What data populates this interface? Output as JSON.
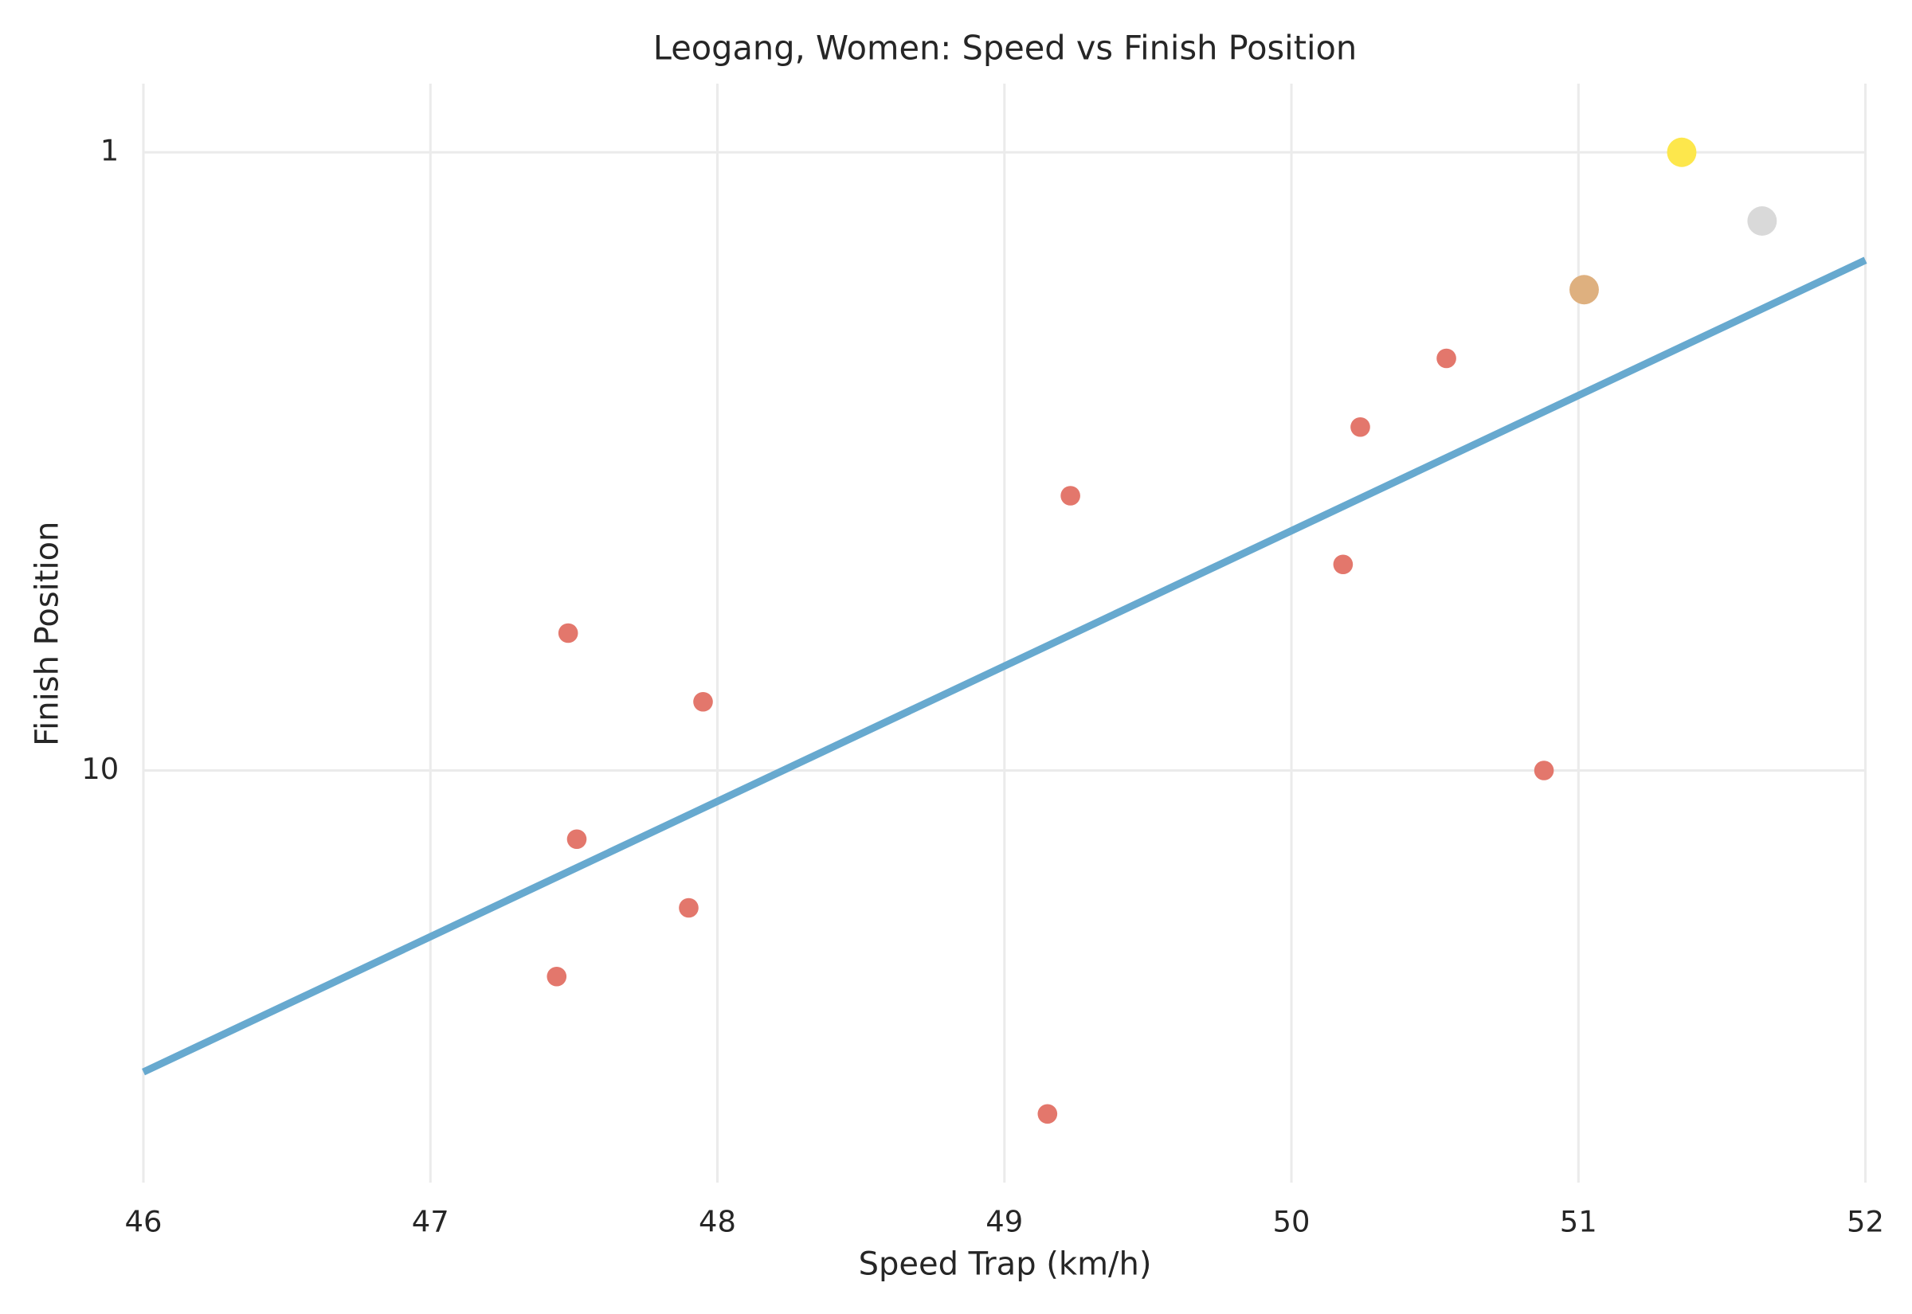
{
  "chart_data": {
    "type": "scatter",
    "title": "Leogang, Women: Speed vs Finish Position",
    "x_label": "Speed Trap (km/h)",
    "y_label": "Finish Position",
    "x": [
      51.36,
      51.64,
      51.02,
      50.54,
      50.24,
      49.23,
      50.18,
      47.48,
      47.95,
      50.88,
      47.51,
      47.9,
      47.44,
      49.15
    ],
    "values": [
      1,
      2,
      3,
      4,
      5,
      6,
      7,
      8,
      9,
      10,
      11,
      12,
      13,
      15
    ],
    "color": "#e3776c",
    "colors": [
      "#fde74c",
      "#d9d9d9",
      "#deb07f",
      "#e3776c",
      "#e3776c",
      "#e3776c",
      "#e3776c",
      "#e3776c",
      "#e3776c",
      "#e3776c",
      "#e3776c",
      "#e3776c",
      "#e3776c",
      "#e3776c"
    ],
    "trend_line": {
      "x": [
        46,
        52
      ],
      "values": [
        14.39,
        2.57
      ],
      "color": "#67a9cf"
    },
    "xlim": [
      46,
      52
    ],
    "xticks": [
      46,
      47,
      48,
      49,
      50,
      51,
      52
    ],
    "ylim": [
      16,
      0
    ],
    "yticks": [
      1,
      10
    ],
    "grid": true
  }
}
